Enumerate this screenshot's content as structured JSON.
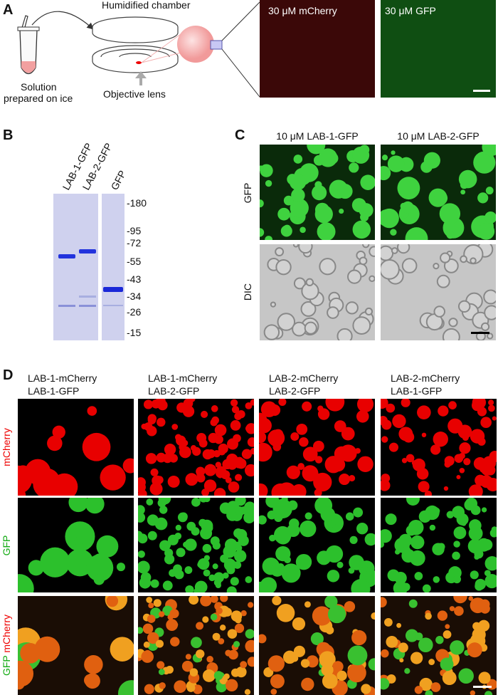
{
  "panels": {
    "A": {
      "label": "A",
      "chamber": "Humidified chamber",
      "solution": [
        "Solution",
        "prepared on ice"
      ],
      "objective": "Objective lens",
      "images": [
        "30 μM mCherry",
        "30 μM GFP"
      ]
    },
    "B": {
      "label": "B",
      "lanes": [
        "LAB-1-GFP",
        "LAB-2-GFP",
        "GFP"
      ],
      "markers": [
        "-180",
        "-95",
        "-72",
        "-55",
        "-43",
        "-34",
        "-26",
        "-15"
      ]
    },
    "C": {
      "label": "C",
      "columns": [
        "10 μM LAB-1-GFP",
        "10 μM LAB-2-GFP"
      ],
      "rows": [
        "GFP",
        "DIC"
      ]
    },
    "D": {
      "label": "D",
      "columns": [
        [
          "LAB-1-mCherry",
          "LAB-1-GFP"
        ],
        [
          "LAB-1-mCherry",
          "LAB-2-GFP"
        ],
        [
          "LAB-2-mCherry",
          "LAB-2-GFP"
        ],
        [
          "LAB-2-mCherry",
          "LAB-1-GFP"
        ]
      ],
      "rows": [
        "mCherry",
        "GFP",
        [
          "GFP",
          "mCherry"
        ]
      ]
    }
  }
}
